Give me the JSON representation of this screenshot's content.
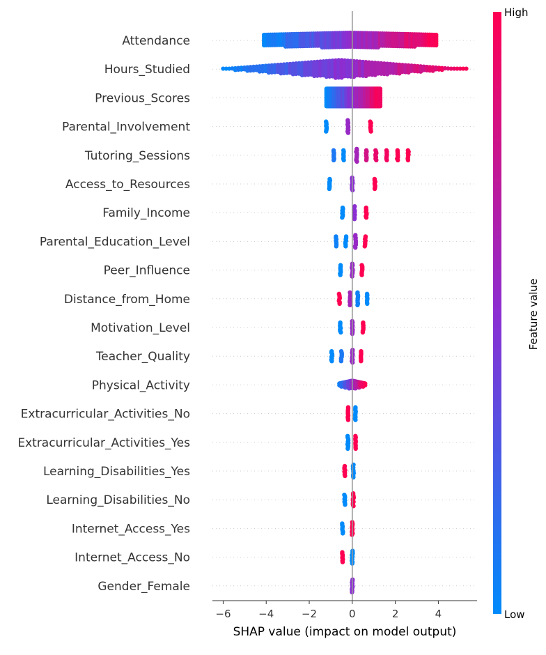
{
  "chart_data": {
    "type": "scatter",
    "subtype": "shap-beeswarm",
    "xlabel": "SHAP value (impact on model output)",
    "xlim": [
      -6.5,
      5.8
    ],
    "xticks": [
      -6,
      -4,
      -2,
      0,
      2,
      4
    ],
    "xtick_labels": [
      "−6",
      "−4",
      "−2",
      "0",
      "2",
      "4"
    ],
    "features": [
      {
        "name": "Attendance",
        "shap_min": -4.1,
        "shap_max": 3.9,
        "trend": "increasing",
        "density": "wide"
      },
      {
        "name": "Hours_Studied",
        "shap_min": -6.0,
        "shap_max": 5.3,
        "trend": "increasing",
        "density": "tapered"
      },
      {
        "name": "Previous_Scores",
        "shap_min": -1.2,
        "shap_max": 1.3,
        "trend": "increasing",
        "density": "dense"
      },
      {
        "name": "Parental_Involvement",
        "clusters": [
          {
            "x": -1.2,
            "v": 0.0
          },
          {
            "x": -0.2,
            "v": 0.55
          },
          {
            "x": 0.85,
            "v": 1.0
          }
        ]
      },
      {
        "name": "Tutoring_Sessions",
        "clusters": [
          {
            "x": -0.85,
            "v": 0.1
          },
          {
            "x": -0.4,
            "v": 0.0
          },
          {
            "x": 0.2,
            "v": 0.6
          },
          {
            "x": 0.65,
            "v": 0.8
          },
          {
            "x": 1.1,
            "v": 0.9
          },
          {
            "x": 1.6,
            "v": 0.95
          },
          {
            "x": 2.1,
            "v": 1.0
          },
          {
            "x": 2.6,
            "v": 1.0
          }
        ]
      },
      {
        "name": "Access_to_Resources",
        "clusters": [
          {
            "x": -1.05,
            "v": 0.0
          },
          {
            "x": 0.0,
            "v": 0.5
          },
          {
            "x": 1.05,
            "v": 1.0
          }
        ]
      },
      {
        "name": "Family_Income",
        "clusters": [
          {
            "x": -0.45,
            "v": 0.0
          },
          {
            "x": 0.1,
            "v": 0.5
          },
          {
            "x": 0.65,
            "v": 1.0
          }
        ]
      },
      {
        "name": "Parental_Education_Level",
        "clusters": [
          {
            "x": -0.75,
            "v": 0.05
          },
          {
            "x": -0.3,
            "v": 0.0
          },
          {
            "x": 0.15,
            "v": 0.55
          },
          {
            "x": 0.6,
            "v": 1.0
          }
        ]
      },
      {
        "name": "Peer_Influence",
        "clusters": [
          {
            "x": -0.55,
            "v": 0.0
          },
          {
            "x": 0.0,
            "v": 0.55
          },
          {
            "x": 0.45,
            "v": 1.0
          }
        ]
      },
      {
        "name": "Distance_from_Home",
        "clusters": [
          {
            "x": -0.6,
            "v": 1.0
          },
          {
            "x": -0.1,
            "v": 0.6
          },
          {
            "x": 0.25,
            "v": 0.05
          },
          {
            "x": 0.7,
            "v": 0.0
          }
        ]
      },
      {
        "name": "Motivation_Level",
        "clusters": [
          {
            "x": -0.55,
            "v": 0.0
          },
          {
            "x": 0.0,
            "v": 0.55
          },
          {
            "x": 0.5,
            "v": 1.0
          }
        ]
      },
      {
        "name": "Teacher_Quality",
        "clusters": [
          {
            "x": -0.95,
            "v": 0.0
          },
          {
            "x": -0.5,
            "v": 0.1
          },
          {
            "x": 0.0,
            "v": 0.55
          },
          {
            "x": 0.4,
            "v": 1.0
          }
        ]
      },
      {
        "name": "Physical_Activity",
        "shap_min": -0.6,
        "shap_max": 0.6,
        "trend": "increasing",
        "density": "small"
      },
      {
        "name": "Extracurricular_Activities_No",
        "clusters": [
          {
            "x": -0.2,
            "v": 1.0
          },
          {
            "x": 0.15,
            "v": 0.0
          }
        ]
      },
      {
        "name": "Extracurricular_Activities_Yes",
        "clusters": [
          {
            "x": -0.2,
            "v": 0.0
          },
          {
            "x": 0.15,
            "v": 1.0
          }
        ]
      },
      {
        "name": "Learning_Disabilities_Yes",
        "clusters": [
          {
            "x": -0.35,
            "v": 1.0
          },
          {
            "x": 0.05,
            "v": 0.0
          }
        ]
      },
      {
        "name": "Learning_Disabilities_No",
        "clusters": [
          {
            "x": -0.35,
            "v": 0.0
          },
          {
            "x": 0.05,
            "v": 1.0
          }
        ]
      },
      {
        "name": "Internet_Access_Yes",
        "clusters": [
          {
            "x": -0.45,
            "v": 0.0
          },
          {
            "x": 0.0,
            "v": 1.0
          }
        ]
      },
      {
        "name": "Internet_Access_No",
        "clusters": [
          {
            "x": -0.45,
            "v": 1.0
          },
          {
            "x": 0.0,
            "v": 0.0
          }
        ]
      },
      {
        "name": "Gender_Female",
        "clusters": [
          {
            "x": 0.0,
            "v": 0.5
          }
        ]
      }
    ],
    "colorbar": {
      "title": "Feature value",
      "high_label": "High",
      "low_label": "Low",
      "low_color": "#008afb",
      "mid_color": "#8b2ed2",
      "high_color": "#ff0052"
    },
    "zero_line": true,
    "grid": false
  }
}
